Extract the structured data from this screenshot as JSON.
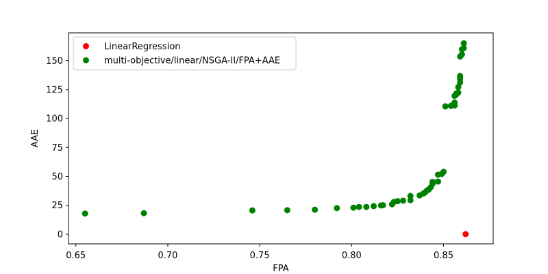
{
  "chart_data": {
    "type": "scatter",
    "xlabel": "FPA",
    "ylabel": "AAE",
    "xlim": [
      0.646,
      0.877
    ],
    "ylim": [
      -8.3,
      174
    ],
    "xticks": [
      0.65,
      0.7,
      0.75,
      0.8,
      0.85
    ],
    "xtick_labels": [
      "0.65",
      "0.70",
      "0.75",
      "0.80",
      "0.85"
    ],
    "yticks": [
      0,
      25,
      50,
      75,
      100,
      125,
      150
    ],
    "ytick_labels": [
      "0",
      "25",
      "50",
      "75",
      "100",
      "125",
      "150"
    ],
    "grid": false,
    "legend_position": "top-left",
    "series": [
      {
        "name": "LinearRegression",
        "color": "#ff0000",
        "points": [
          [
            0.862,
            0.1
          ]
        ]
      },
      {
        "name": "multi-objective/linear/NSGA-II/FPA+AAE",
        "color": "#008000",
        "points": [
          [
            0.655,
            17.9
          ],
          [
            0.687,
            18.2
          ],
          [
            0.746,
            20.6
          ],
          [
            0.765,
            20.8
          ],
          [
            0.78,
            21.2
          ],
          [
            0.792,
            22.6
          ],
          [
            0.801,
            23.0
          ],
          [
            0.804,
            23.6
          ],
          [
            0.808,
            23.6
          ],
          [
            0.812,
            24.3
          ],
          [
            0.816,
            24.9
          ],
          [
            0.817,
            25.1
          ],
          [
            0.822,
            25.9
          ],
          [
            0.823,
            27.9
          ],
          [
            0.825,
            28.6
          ],
          [
            0.828,
            29.0
          ],
          [
            0.832,
            29.4
          ],
          [
            0.832,
            33.1
          ],
          [
            0.837,
            33.6
          ],
          [
            0.839,
            35.2
          ],
          [
            0.84,
            36.2
          ],
          [
            0.841,
            37.8
          ],
          [
            0.842,
            38.8
          ],
          [
            0.843,
            40.6
          ],
          [
            0.844,
            43.6
          ],
          [
            0.844,
            45.3
          ],
          [
            0.847,
            45.5
          ],
          [
            0.847,
            51.5
          ],
          [
            0.849,
            52.1
          ],
          [
            0.85,
            53.9
          ],
          [
            0.851,
            110.5
          ],
          [
            0.854,
            111.0
          ],
          [
            0.855,
            111.8
          ],
          [
            0.856,
            111.2
          ],
          [
            0.856,
            113.8
          ],
          [
            0.856,
            119.6
          ],
          [
            0.857,
            120.9
          ],
          [
            0.857,
            121.7
          ],
          [
            0.858,
            122.4
          ],
          [
            0.858,
            127.2
          ],
          [
            0.859,
            131.2
          ],
          [
            0.859,
            134.1
          ],
          [
            0.859,
            135.7
          ],
          [
            0.859,
            136.8
          ],
          [
            0.859,
            153.6
          ],
          [
            0.86,
            155.4
          ],
          [
            0.86,
            159.8
          ],
          [
            0.861,
            160.9
          ],
          [
            0.861,
            165.0
          ]
        ]
      }
    ]
  }
}
